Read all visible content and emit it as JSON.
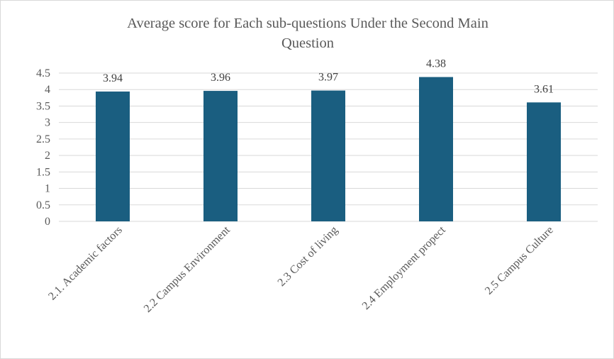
{
  "chart_data": {
    "type": "bar",
    "title_lines": [
      "Average score for Each sub-questions Under the Second Main",
      "Question"
    ],
    "categories": [
      "2.1. Academic factors",
      "2.2 Campus Environment",
      "2.3 Cost of living",
      "2.4 Employment propect",
      "2.5 Campus Culture"
    ],
    "values": [
      3.94,
      3.96,
      3.97,
      4.38,
      3.61
    ],
    "data_labels": [
      "3.94",
      "3.96",
      "3.97",
      "4.38",
      "3.61"
    ],
    "yticks": [
      "0",
      "0.5",
      "1",
      "1.5",
      "2",
      "2.5",
      "3",
      "3.5",
      "4",
      "4.5"
    ],
    "ylim": [
      0,
      4.5
    ],
    "grid": true,
    "legend": "none",
    "bar_color": "#1a5e80",
    "grid_color": "#d9d9d9",
    "text_color": "#595959"
  }
}
